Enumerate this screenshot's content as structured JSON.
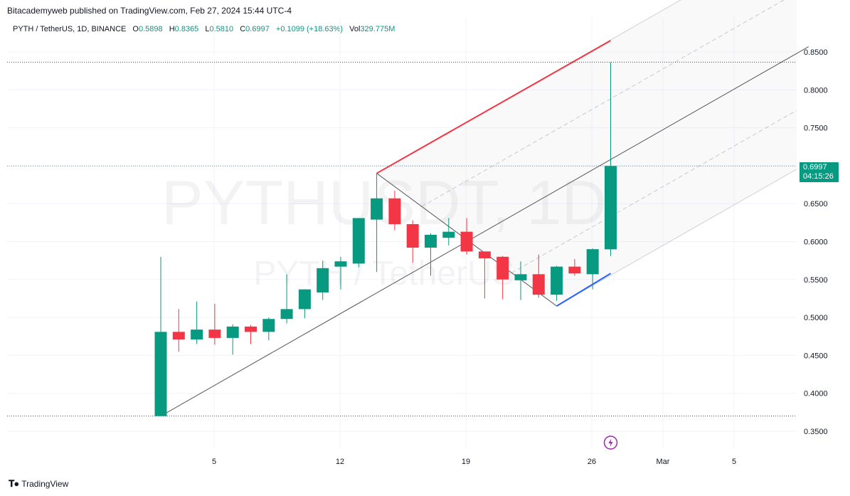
{
  "publisher": "Bitacademyweb published on TradingView.com, Feb 27, 2024 15:44 UTC-4",
  "legend": {
    "symbol": "PYTH / TetherUS, 1D, BINANCE",
    "open_label": "O",
    "open": "0.5898",
    "high_label": "H",
    "high": "0.8365",
    "low_label": "L",
    "low": "0.5810",
    "close_label": "C",
    "close": "0.6997",
    "change": "+0.1099 (+18.63%)",
    "vol_label": "Vol",
    "vol": "329.775M"
  },
  "last_price": {
    "value": "0.6997",
    "countdown": "04:15:26"
  },
  "watermark": {
    "line1": "PYTHUSDT, 1D",
    "line2": "PYTH / TetherUS"
  },
  "footer": {
    "brand": "TradingView",
    "logo_icon": "tradingview-logo-icon"
  },
  "colors": {
    "up": "#089981",
    "down": "#f23645",
    "upper_line": "#f23645",
    "lower_line": "#2962ff"
  },
  "chart_data": {
    "type": "candlestick",
    "x_ticks": [
      "5",
      "12",
      "19",
      "26",
      "Mar",
      "5"
    ],
    "y_ticks": [
      "0.8500",
      "0.8000",
      "0.7500",
      "0.7000",
      "0.6500",
      "0.6000",
      "0.5500",
      "0.5000",
      "0.4500",
      "0.4000",
      "0.3500"
    ],
    "ylim": [
      0.32,
      0.875
    ],
    "candles": [
      {
        "date": "2024-02-02",
        "o": 0.37,
        "h": 0.58,
        "l": 0.37,
        "c": 0.481
      },
      {
        "date": "2024-02-03",
        "o": 0.481,
        "h": 0.511,
        "l": 0.455,
        "c": 0.471
      },
      {
        "date": "2024-02-04",
        "o": 0.471,
        "h": 0.521,
        "l": 0.465,
        "c": 0.484
      },
      {
        "date": "2024-02-05",
        "o": 0.484,
        "h": 0.518,
        "l": 0.464,
        "c": 0.473
      },
      {
        "date": "2024-02-06",
        "o": 0.473,
        "h": 0.491,
        "l": 0.451,
        "c": 0.488
      },
      {
        "date": "2024-02-07",
        "o": 0.488,
        "h": 0.49,
        "l": 0.465,
        "c": 0.481
      },
      {
        "date": "2024-02-08",
        "o": 0.481,
        "h": 0.5,
        "l": 0.47,
        "c": 0.498
      },
      {
        "date": "2024-02-09",
        "o": 0.498,
        "h": 0.557,
        "l": 0.492,
        "c": 0.511
      },
      {
        "date": "2024-02-10",
        "o": 0.511,
        "h": 0.537,
        "l": 0.499,
        "c": 0.537
      },
      {
        "date": "2024-02-11",
        "o": 0.533,
        "h": 0.575,
        "l": 0.523,
        "c": 0.565
      },
      {
        "date": "2024-02-12",
        "o": 0.567,
        "h": 0.58,
        "l": 0.537,
        "c": 0.574
      },
      {
        "date": "2024-02-13",
        "o": 0.571,
        "h": 0.631,
        "l": 0.566,
        "c": 0.631
      },
      {
        "date": "2024-02-14",
        "o": 0.629,
        "h": 0.69,
        "l": 0.56,
        "c": 0.657
      },
      {
        "date": "2024-02-15",
        "o": 0.657,
        "h": 0.667,
        "l": 0.615,
        "c": 0.623
      },
      {
        "date": "2024-02-16",
        "o": 0.623,
        "h": 0.628,
        "l": 0.572,
        "c": 0.592
      },
      {
        "date": "2024-02-17",
        "o": 0.592,
        "h": 0.611,
        "l": 0.555,
        "c": 0.609
      },
      {
        "date": "2024-02-18",
        "o": 0.605,
        "h": 0.631,
        "l": 0.595,
        "c": 0.613
      },
      {
        "date": "2024-02-19",
        "o": 0.613,
        "h": 0.631,
        "l": 0.583,
        "c": 0.587
      },
      {
        "date": "2024-02-20",
        "o": 0.587,
        "h": 0.587,
        "l": 0.525,
        "c": 0.578
      },
      {
        "date": "2024-02-21",
        "o": 0.58,
        "h": 0.581,
        "l": 0.524,
        "c": 0.55
      },
      {
        "date": "2024-02-22",
        "o": 0.549,
        "h": 0.574,
        "l": 0.523,
        "c": 0.557
      },
      {
        "date": "2024-02-23",
        "o": 0.557,
        "h": 0.583,
        "l": 0.526,
        "c": 0.53
      },
      {
        "date": "2024-02-24",
        "o": 0.53,
        "h": 0.568,
        "l": 0.522,
        "c": 0.567
      },
      {
        "date": "2024-02-25",
        "o": 0.567,
        "h": 0.577,
        "l": 0.555,
        "c": 0.558
      },
      {
        "date": "2024-02-26",
        "o": 0.557,
        "h": 0.591,
        "l": 0.537,
        "c": 0.59
      },
      {
        "date": "2024-02-27",
        "o": 0.5898,
        "h": 0.8365,
        "l": 0.581,
        "c": 0.6997
      }
    ],
    "annotations": {
      "horizontal_levels": [
        0.8365,
        0.6997,
        0.37
      ],
      "pitchfork": {
        "median": [
          [
            "2024-02-02",
            0.37
          ],
          [
            "2024-03-09",
            0.857
          ]
        ],
        "upper": [
          [
            "2024-02-14",
            0.69
          ],
          [
            "2024-02-27",
            0.865
          ]
        ],
        "lower": [
          [
            "2024-02-24",
            0.515
          ],
          [
            "2024-02-27",
            0.558
          ]
        ],
        "handle": [
          [
            "2024-02-14",
            0.69
          ],
          [
            "2024-02-24",
            0.515
          ]
        ]
      }
    }
  }
}
